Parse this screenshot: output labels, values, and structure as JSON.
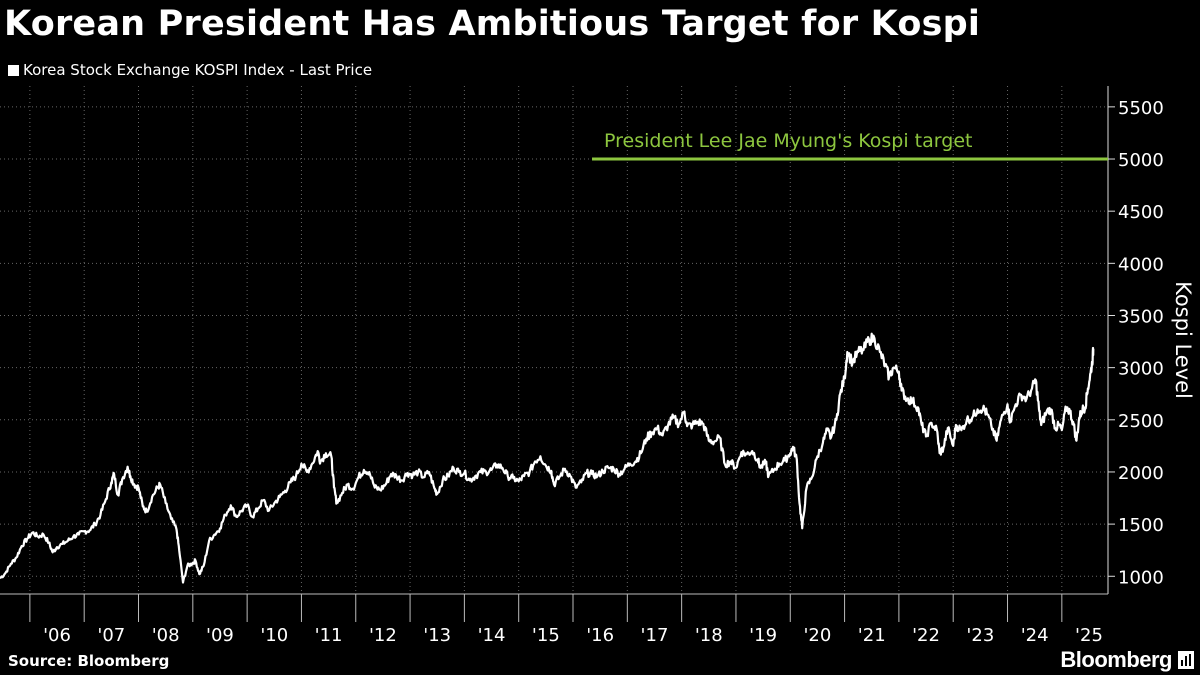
{
  "chart_data": {
    "type": "line",
    "title": "Korean President Has Ambitious Target for Kospi",
    "legend": "Korea Stock Exchange KOSPI Index - Last Price",
    "ylabel": "Kospi Level",
    "xlabel": "",
    "ylim": [
      830,
      5700
    ],
    "xlim": [
      2005.45,
      2025.85
    ],
    "yticks": [
      1000,
      1500,
      2000,
      2500,
      3000,
      3500,
      4000,
      4500,
      5000,
      5500
    ],
    "xtick_labels": [
      "'06",
      "'07",
      "'08",
      "'09",
      "'10",
      "'11",
      "'12",
      "'13",
      "'14",
      "'15",
      "'16",
      "'17",
      "'18",
      "'19",
      "'20",
      "'21",
      "'22",
      "'23",
      "'24",
      "'25"
    ],
    "xtick_years": [
      2006,
      2007,
      2008,
      2009,
      2010,
      2011,
      2012,
      2013,
      2014,
      2015,
      2016,
      2017,
      2018,
      2019,
      2020,
      2021,
      2022,
      2023,
      2024,
      2025
    ],
    "grid": true,
    "series": [
      {
        "name": "Korea Stock Exchange KOSPI Index - Last Price",
        "color": "#ffffff",
        "points": [
          [
            2005.45,
            980
          ],
          [
            2005.55,
            1030
          ],
          [
            2005.65,
            1120
          ],
          [
            2005.75,
            1180
          ],
          [
            2005.85,
            1290
          ],
          [
            2005.95,
            1360
          ],
          [
            2006.05,
            1420
          ],
          [
            2006.15,
            1380
          ],
          [
            2006.25,
            1400
          ],
          [
            2006.35,
            1320
          ],
          [
            2006.42,
            1230
          ],
          [
            2006.5,
            1280
          ],
          [
            2006.6,
            1310
          ],
          [
            2006.7,
            1340
          ],
          [
            2006.8,
            1380
          ],
          [
            2006.9,
            1400
          ],
          [
            2007.0,
            1430
          ],
          [
            2007.1,
            1440
          ],
          [
            2007.2,
            1500
          ],
          [
            2007.3,
            1590
          ],
          [
            2007.4,
            1740
          ],
          [
            2007.5,
            1900
          ],
          [
            2007.55,
            1980
          ],
          [
            2007.62,
            1780
          ],
          [
            2007.7,
            1930
          ],
          [
            2007.8,
            2050
          ],
          [
            2007.85,
            1960
          ],
          [
            2007.92,
            1880
          ],
          [
            2008.0,
            1850
          ],
          [
            2008.08,
            1670
          ],
          [
            2008.15,
            1620
          ],
          [
            2008.25,
            1760
          ],
          [
            2008.35,
            1850
          ],
          [
            2008.4,
            1880
          ],
          [
            2008.5,
            1700
          ],
          [
            2008.6,
            1550
          ],
          [
            2008.7,
            1450
          ],
          [
            2008.75,
            1250
          ],
          [
            2008.82,
            940
          ],
          [
            2008.9,
            1100
          ],
          [
            2008.98,
            1120
          ],
          [
            2009.05,
            1150
          ],
          [
            2009.12,
            1020
          ],
          [
            2009.2,
            1100
          ],
          [
            2009.3,
            1340
          ],
          [
            2009.4,
            1400
          ],
          [
            2009.5,
            1460
          ],
          [
            2009.6,
            1590
          ],
          [
            2009.7,
            1680
          ],
          [
            2009.8,
            1570
          ],
          [
            2009.9,
            1630
          ],
          [
            2010.0,
            1680
          ],
          [
            2010.1,
            1570
          ],
          [
            2010.2,
            1650
          ],
          [
            2010.3,
            1730
          ],
          [
            2010.4,
            1630
          ],
          [
            2010.5,
            1700
          ],
          [
            2010.6,
            1760
          ],
          [
            2010.7,
            1820
          ],
          [
            2010.8,
            1900
          ],
          [
            2010.9,
            1960
          ],
          [
            2011.0,
            2080
          ],
          [
            2011.1,
            2000
          ],
          [
            2011.2,
            2080
          ],
          [
            2011.3,
            2200
          ],
          [
            2011.35,
            2100
          ],
          [
            2011.45,
            2180
          ],
          [
            2011.55,
            2150
          ],
          [
            2011.6,
            1850
          ],
          [
            2011.65,
            1700
          ],
          [
            2011.75,
            1800
          ],
          [
            2011.85,
            1880
          ],
          [
            2011.95,
            1840
          ],
          [
            2012.05,
            1950
          ],
          [
            2012.15,
            2020
          ],
          [
            2012.25,
            2000
          ],
          [
            2012.35,
            1850
          ],
          [
            2012.45,
            1830
          ],
          [
            2012.55,
            1880
          ],
          [
            2012.65,
            1980
          ],
          [
            2012.75,
            1960
          ],
          [
            2012.85,
            1920
          ],
          [
            2012.95,
            1990
          ],
          [
            2013.05,
            1970
          ],
          [
            2013.15,
            2000
          ],
          [
            2013.25,
            1950
          ],
          [
            2013.35,
            2000
          ],
          [
            2013.45,
            1840
          ],
          [
            2013.5,
            1790
          ],
          [
            2013.6,
            1920
          ],
          [
            2013.7,
            1960
          ],
          [
            2013.8,
            2040
          ],
          [
            2013.9,
            2000
          ],
          [
            2014.0,
            1990
          ],
          [
            2014.1,
            1920
          ],
          [
            2014.2,
            1960
          ],
          [
            2014.3,
            2000
          ],
          [
            2014.4,
            2000
          ],
          [
            2014.5,
            2020
          ],
          [
            2014.6,
            2070
          ],
          [
            2014.7,
            2040
          ],
          [
            2014.8,
            1960
          ],
          [
            2014.9,
            1940
          ],
          [
            2015.0,
            1910
          ],
          [
            2015.1,
            1960
          ],
          [
            2015.2,
            2000
          ],
          [
            2015.3,
            2100
          ],
          [
            2015.4,
            2150
          ],
          [
            2015.5,
            2060
          ],
          [
            2015.6,
            2010
          ],
          [
            2015.65,
            1880
          ],
          [
            2015.75,
            1950
          ],
          [
            2015.85,
            2030
          ],
          [
            2015.95,
            1960
          ],
          [
            2016.05,
            1850
          ],
          [
            2016.15,
            1900
          ],
          [
            2016.25,
            1990
          ],
          [
            2016.35,
            1980
          ],
          [
            2016.45,
            1960
          ],
          [
            2016.55,
            2010
          ],
          [
            2016.65,
            2040
          ],
          [
            2016.75,
            2030
          ],
          [
            2016.85,
            1980
          ],
          [
            2016.95,
            2030
          ],
          [
            2017.05,
            2080
          ],
          [
            2017.15,
            2100
          ],
          [
            2017.25,
            2180
          ],
          [
            2017.35,
            2320
          ],
          [
            2017.45,
            2380
          ],
          [
            2017.55,
            2420
          ],
          [
            2017.65,
            2350
          ],
          [
            2017.75,
            2450
          ],
          [
            2017.85,
            2520
          ],
          [
            2017.95,
            2460
          ],
          [
            2018.05,
            2580
          ],
          [
            2018.1,
            2440
          ],
          [
            2018.2,
            2450
          ],
          [
            2018.3,
            2480
          ],
          [
            2018.4,
            2460
          ],
          [
            2018.5,
            2300
          ],
          [
            2018.6,
            2290
          ],
          [
            2018.7,
            2330
          ],
          [
            2018.8,
            2070
          ],
          [
            2018.9,
            2100
          ],
          [
            2019.0,
            2040
          ],
          [
            2019.1,
            2190
          ],
          [
            2019.2,
            2170
          ],
          [
            2019.3,
            2200
          ],
          [
            2019.4,
            2120
          ],
          [
            2019.45,
            2040
          ],
          [
            2019.55,
            2090
          ],
          [
            2019.6,
            1960
          ],
          [
            2019.7,
            2020
          ],
          [
            2019.8,
            2080
          ],
          [
            2019.9,
            2110
          ],
          [
            2020.0,
            2180
          ],
          [
            2020.05,
            2240
          ],
          [
            2020.12,
            2120
          ],
          [
            2020.17,
            1700
          ],
          [
            2020.22,
            1460
          ],
          [
            2020.3,
            1850
          ],
          [
            2020.4,
            1950
          ],
          [
            2020.5,
            2150
          ],
          [
            2020.6,
            2280
          ],
          [
            2020.68,
            2400
          ],
          [
            2020.75,
            2330
          ],
          [
            2020.85,
            2500
          ],
          [
            2020.92,
            2750
          ],
          [
            2021.0,
            2900
          ],
          [
            2021.05,
            3150
          ],
          [
            2021.15,
            3050
          ],
          [
            2021.25,
            3150
          ],
          [
            2021.35,
            3170
          ],
          [
            2021.45,
            3270
          ],
          [
            2021.55,
            3280
          ],
          [
            2021.65,
            3150
          ],
          [
            2021.75,
            3020
          ],
          [
            2021.82,
            2910
          ],
          [
            2021.9,
            3000
          ],
          [
            2022.0,
            2960
          ],
          [
            2022.05,
            2780
          ],
          [
            2022.15,
            2700
          ],
          [
            2022.25,
            2680
          ],
          [
            2022.35,
            2620
          ],
          [
            2022.42,
            2450
          ],
          [
            2022.5,
            2340
          ],
          [
            2022.6,
            2470
          ],
          [
            2022.7,
            2400
          ],
          [
            2022.75,
            2180
          ],
          [
            2022.82,
            2230
          ],
          [
            2022.9,
            2420
          ],
          [
            2023.0,
            2250
          ],
          [
            2023.05,
            2450
          ],
          [
            2023.15,
            2400
          ],
          [
            2023.25,
            2500
          ],
          [
            2023.35,
            2520
          ],
          [
            2023.45,
            2600
          ],
          [
            2023.55,
            2610
          ],
          [
            2023.62,
            2560
          ],
          [
            2023.7,
            2450
          ],
          [
            2023.8,
            2300
          ],
          [
            2023.88,
            2500
          ],
          [
            2024.0,
            2650
          ],
          [
            2024.05,
            2480
          ],
          [
            2024.15,
            2650
          ],
          [
            2024.25,
            2740
          ],
          [
            2024.35,
            2700
          ],
          [
            2024.45,
            2800
          ],
          [
            2024.52,
            2880
          ],
          [
            2024.58,
            2600
          ],
          [
            2024.62,
            2450
          ],
          [
            2024.72,
            2580
          ],
          [
            2024.8,
            2600
          ],
          [
            2024.88,
            2420
          ],
          [
            2024.95,
            2450
          ],
          [
            2025.0,
            2400
          ],
          [
            2025.08,
            2620
          ],
          [
            2025.15,
            2580
          ],
          [
            2025.22,
            2450
          ],
          [
            2025.27,
            2300
          ],
          [
            2025.32,
            2520
          ],
          [
            2025.38,
            2600
          ],
          [
            2025.43,
            2620
          ],
          [
            2025.48,
            2800
          ],
          [
            2025.53,
            2950
          ],
          [
            2025.56,
            3050
          ],
          [
            2025.58,
            3180
          ]
        ]
      }
    ],
    "annotations": [
      {
        "label": "President Lee Jae Myung's Kospi target",
        "value": 5000,
        "x_start": 2016.35,
        "x_end": 2025.85,
        "color": "#8dc63f"
      }
    ],
    "colors": {
      "background": "#000000",
      "line": "#ffffff",
      "grid": "#666666",
      "target": "#8dc63f"
    }
  },
  "footer": {
    "source": "Source: Bloomberg",
    "brand": "Bloomberg"
  }
}
